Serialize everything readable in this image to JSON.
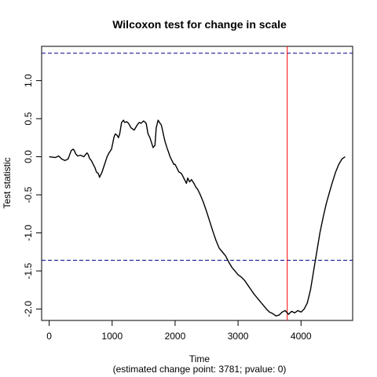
{
  "chart_data": {
    "type": "line",
    "title": "Wilcoxon test for change in scale",
    "xlabel": "Time",
    "subtitle": "(estimated change point: 3781; pvalue: 0)",
    "ylabel": "Test statistic",
    "xlim": [
      -120,
      4820
    ],
    "ylim": [
      -2.15,
      1.45
    ],
    "xticks": [
      0,
      1000,
      2000,
      3000,
      4000
    ],
    "yticks": [
      -2.0,
      -1.5,
      -1.0,
      -0.5,
      0.0,
      0.5,
      1.0
    ],
    "xtick_labels": [
      "0",
      "1000",
      "2000",
      "3000",
      "4000"
    ],
    "ytick_labels": [
      "-2.0",
      "-1.5",
      "-1.0",
      "-0.5",
      "0.0",
      "0.5",
      "1.0"
    ],
    "grid": false,
    "critical_values": [
      1.36,
      -1.36
    ],
    "change_point": 3781,
    "colors": {
      "series": "#000000",
      "critical": "#00008b",
      "change_point": "#ff0000"
    },
    "series": [
      {
        "x": [
          0,
          100,
          150,
          200,
          250,
          300,
          350,
          380,
          400,
          420,
          450,
          500,
          550,
          600,
          620,
          640,
          670,
          700,
          730,
          750,
          780,
          800,
          840,
          860,
          880,
          900,
          920,
          950,
          990,
          1010,
          1030,
          1050,
          1080,
          1100,
          1120,
          1150,
          1180,
          1200,
          1230,
          1260,
          1300,
          1350,
          1400,
          1430,
          1460,
          1500,
          1540,
          1570,
          1600,
          1620,
          1650,
          1680,
          1700,
          1730,
          1760,
          1780,
          1800,
          1820,
          1840,
          1870,
          1900,
          1920,
          1950,
          1980,
          2000,
          2030,
          2060,
          2100,
          2120,
          2150,
          2180,
          2200,
          2230,
          2260,
          2300,
          2330,
          2360,
          2400,
          2450,
          2500,
          2550,
          2600,
          2650,
          2700,
          2750,
          2800,
          2850,
          2900,
          2950,
          3000,
          3050,
          3100,
          3150,
          3200,
          3250,
          3300,
          3350,
          3400,
          3450,
          3500,
          3550,
          3600,
          3650,
          3700,
          3750,
          3781,
          3800,
          3850,
          3900,
          3950,
          4000,
          4050,
          4100,
          4150,
          4200,
          4250,
          4300,
          4350,
          4400,
          4450,
          4500,
          4550,
          4600,
          4650,
          4700
        ],
        "y": [
          0.0,
          -0.01,
          0.01,
          -0.03,
          -0.05,
          -0.03,
          0.08,
          0.1,
          0.08,
          0.04,
          0.01,
          0.02,
          0.0,
          0.05,
          0.03,
          -0.02,
          -0.05,
          -0.1,
          -0.15,
          -0.2,
          -0.22,
          -0.27,
          -0.2,
          -0.15,
          -0.1,
          -0.05,
          0.0,
          0.05,
          0.1,
          0.18,
          0.26,
          0.3,
          0.28,
          0.25,
          0.3,
          0.45,
          0.48,
          0.45,
          0.46,
          0.44,
          0.38,
          0.35,
          0.42,
          0.45,
          0.44,
          0.47,
          0.44,
          0.3,
          0.25,
          0.2,
          0.12,
          0.15,
          0.38,
          0.48,
          0.44,
          0.42,
          0.35,
          0.27,
          0.2,
          0.12,
          0.05,
          0.0,
          -0.05,
          -0.1,
          -0.1,
          -0.15,
          -0.2,
          -0.22,
          -0.25,
          -0.3,
          -0.35,
          -0.28,
          -0.33,
          -0.3,
          -0.35,
          -0.4,
          -0.43,
          -0.5,
          -0.6,
          -0.72,
          -0.85,
          -0.98,
          -1.1,
          -1.2,
          -1.25,
          -1.3,
          -1.38,
          -1.45,
          -1.5,
          -1.55,
          -1.58,
          -1.62,
          -1.68,
          -1.74,
          -1.8,
          -1.85,
          -1.9,
          -1.95,
          -2.0,
          -2.04,
          -2.06,
          -2.09,
          -2.08,
          -2.04,
          -2.02,
          -2.05,
          -2.07,
          -2.03,
          -2.05,
          -2.02,
          -2.04,
          -2.0,
          -1.92,
          -1.75,
          -1.5,
          -1.25,
          -1.0,
          -0.8,
          -0.62,
          -0.47,
          -0.33,
          -0.2,
          -0.1,
          -0.03,
          0.0
        ]
      }
    ]
  }
}
